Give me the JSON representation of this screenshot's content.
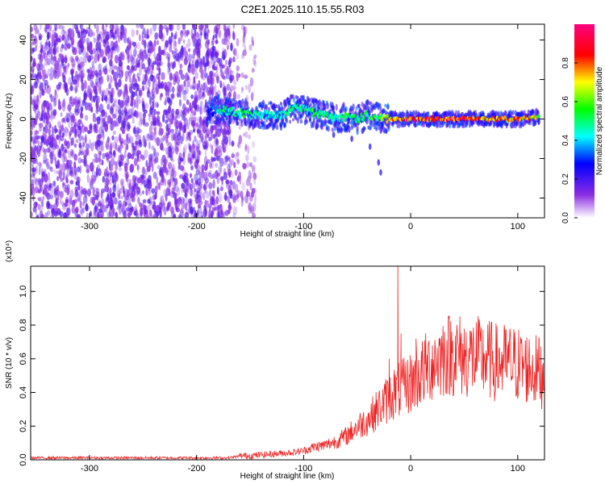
{
  "figure_title": "C2E1.2025.110.15.55.R03",
  "chart_data": [
    {
      "type": "heatmap",
      "title": "",
      "xlabel": "Height of straight line (km)",
      "ylabel": "Frequency (Hz)",
      "xlim": [
        -355,
        125
      ],
      "ylim": [
        -50,
        48
      ],
      "xticks": [
        -300,
        -200,
        -100,
        0,
        100
      ],
      "yticks": [
        -40,
        -20,
        0,
        20,
        40
      ],
      "colorbar": {
        "label": "Normalized spectral amplitude",
        "range": [
          0.0,
          1.0
        ],
        "ticks": [
          0.0,
          0.2,
          0.4,
          0.6,
          0.8
        ],
        "colormap": [
          "#ffffff",
          "#8a2be2",
          "#0000ff",
          "#00ffff",
          "#00ff00",
          "#ffff00",
          "#ff0000",
          "#ff0080"
        ]
      },
      "regions": [
        {
          "description": "broadband noise",
          "x_range": [
            -355,
            -165
          ],
          "freq_range": [
            -50,
            48
          ],
          "amplitude": 0.1
        },
        {
          "description": "sparse noise",
          "x_range": [
            -165,
            -145
          ],
          "freq_range": [
            -50,
            48
          ],
          "amplitude": 0.05
        }
      ],
      "ridge": {
        "x": [
          -190,
          -180,
          -160,
          -140,
          -120,
          -110,
          -100,
          -90,
          -80,
          -70,
          -60,
          -50,
          -40,
          -30,
          -20,
          0,
          20,
          40,
          60,
          80,
          100,
          120
        ],
        "center_freq": [
          3,
          5,
          3,
          2,
          2,
          6,
          5,
          3,
          2,
          0,
          1,
          0,
          2,
          1,
          0,
          0,
          0,
          0,
          0,
          0,
          0,
          1
        ],
        "peak_amplitude": [
          0.2,
          0.45,
          0.55,
          0.5,
          0.45,
          0.55,
          0.5,
          0.55,
          0.5,
          0.5,
          0.55,
          0.5,
          0.55,
          0.6,
          0.8,
          0.9,
          0.9,
          0.9,
          0.85,
          0.85,
          0.85,
          0.7
        ]
      }
    },
    {
      "type": "line",
      "title": "",
      "xlabel": "Height of straight line (km)",
      "ylabel": "SNR (10 * v/v)",
      "y_multiplier": "(x10⁴)",
      "xlim": [
        -355,
        125
      ],
      "ylim": [
        0,
        1.15
      ],
      "xticks": [
        -300,
        -200,
        -100,
        0,
        100
      ],
      "yticks": [
        0.0,
        0.2,
        0.4,
        0.6,
        0.8,
        1.0
      ],
      "series": [
        {
          "color": "#ee2222",
          "x": [
            -355,
            -300,
            -250,
            -200,
            -170,
            -160,
            -150,
            -130,
            -110,
            -100,
            -90,
            -80,
            -70,
            -60,
            -50,
            -40,
            -30,
            -20,
            -15,
            -10,
            0,
            10,
            20,
            30,
            40,
            50,
            60,
            70,
            80,
            90,
            100,
            110,
            120,
            125
          ],
          "y": [
            0.01,
            0.01,
            0.01,
            0.01,
            0.01,
            0.02,
            0.02,
            0.03,
            0.04,
            0.05,
            0.07,
            0.08,
            0.1,
            0.13,
            0.18,
            0.22,
            0.28,
            0.34,
            0.37,
            0.38,
            0.42,
            0.47,
            0.53,
            0.57,
            0.58,
            0.56,
            0.56,
            0.55,
            0.53,
            0.53,
            0.52,
            0.5,
            0.48,
            0.46
          ],
          "spikes": [
            [
              -12,
              1.15
            ],
            [
              -9,
              0.75
            ],
            [
              -20,
              0.6
            ],
            [
              30,
              0.7
            ],
            [
              5,
              0.72
            ],
            [
              120,
              0.72
            ]
          ]
        }
      ]
    }
  ]
}
